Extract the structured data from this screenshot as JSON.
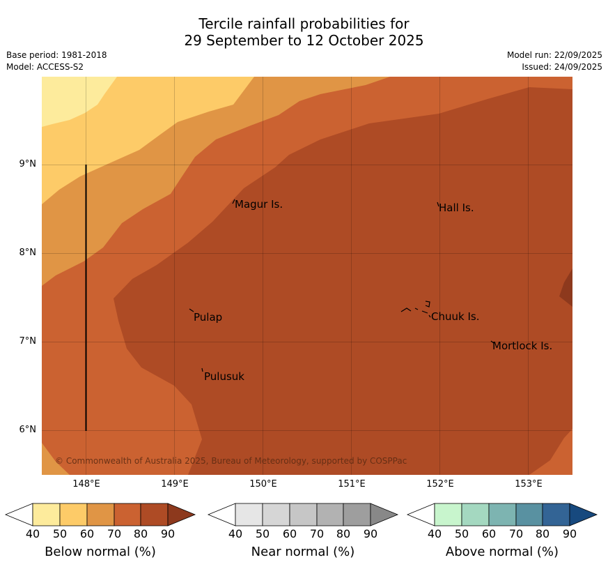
{
  "header": {
    "title_line1": "Tercile rainfall probabilities for",
    "title_line2": "29 September to 12 October 2025",
    "base_period": "Base period: 1981-2018",
    "model": "Model: ACCESS-S2",
    "model_run": "Model run: 22/09/2025",
    "issued": "Issued: 24/09/2025"
  },
  "map": {
    "lat_labels": [
      "9°N",
      "8°N",
      "7°N",
      "6°N"
    ],
    "lon_labels": [
      "148°E",
      "149°E",
      "150°E",
      "151°E",
      "152°E",
      "153°E"
    ],
    "places": [
      "Magur Is.",
      "Hall Is.",
      "Pulap",
      "Chuuk Is.",
      "Mortlock Is.",
      "Pulusuk"
    ],
    "copyright": "© Commonwealth of Australia 2025, Bureau of Meteorology, supported by COSPPac",
    "band_colors": [
      "#fdeb9c",
      "#fdcb68",
      "#e09545",
      "#cb6231",
      "#ae4b25",
      "#8d391d"
    ]
  },
  "legend": {
    "tick_values": [
      "40",
      "50",
      "60",
      "70",
      "80",
      "90"
    ],
    "below": {
      "label": "Below normal (%)",
      "colors": [
        "#ffffff",
        "#fdeb9c",
        "#fdcb68",
        "#e09545",
        "#cb6231",
        "#ae4b25",
        "#8d391d"
      ]
    },
    "near": {
      "label": "Near normal (%)",
      "colors": [
        "#ffffff",
        "#e6e6e6",
        "#d6d6d6",
        "#c6c6c6",
        "#b2b2b2",
        "#9e9e9e",
        "#888888"
      ]
    },
    "above": {
      "label": "Above normal (%)",
      "colors": [
        "#ffffff",
        "#c8f5cd",
        "#a4d8c0",
        "#7db4b1",
        "#5991a1",
        "#336495",
        "#17497e"
      ]
    }
  }
}
